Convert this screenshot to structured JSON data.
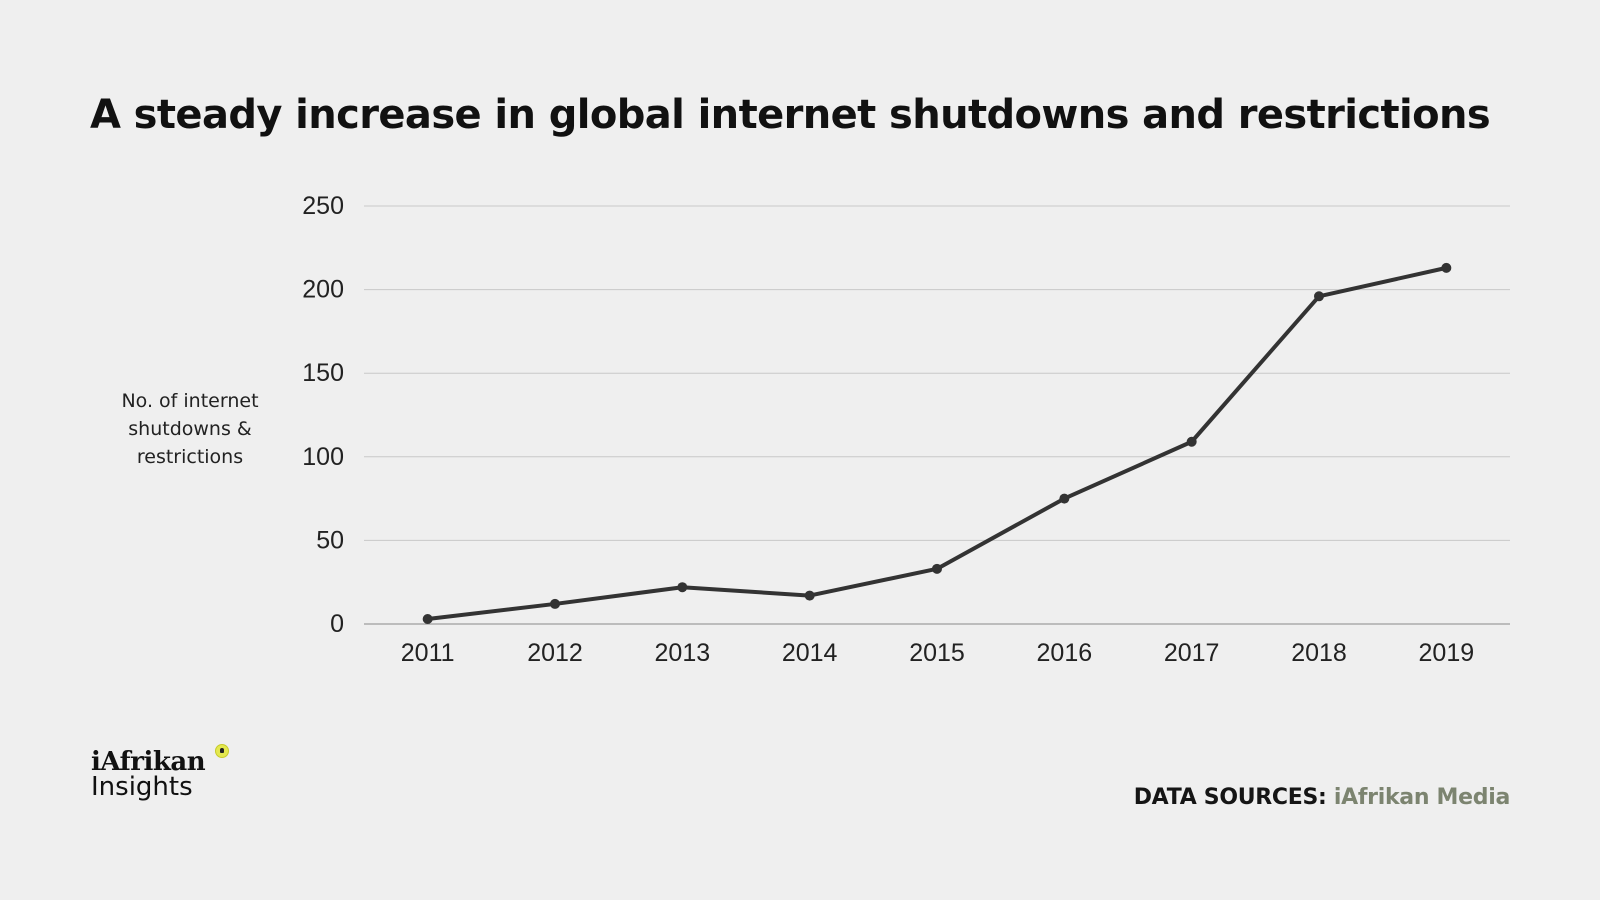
{
  "title": "A steady increase in global internet shutdowns and restrictions",
  "ylabel": [
    "No. of internet",
    "shutdowns &",
    "restrictions"
  ],
  "source": {
    "label": "DATA SOURCES:",
    "value": "iAfrikan Media"
  },
  "logo": {
    "line1": "iAfrikan",
    "line2": "Insights",
    "icon": "africa-globe-icon"
  },
  "colors": {
    "background": "#efefef",
    "line": "#333333",
    "grid": "#c8c8c8",
    "source_value": "#7c8470",
    "logo_dot": "#e4e850"
  },
  "chart_data": {
    "type": "line",
    "x": [
      "2011",
      "2012",
      "2013",
      "2014",
      "2015",
      "2016",
      "2017",
      "2018",
      "2019"
    ],
    "series": [
      {
        "values": [
          3,
          12,
          22,
          17,
          33,
          75,
          109,
          196,
          213
        ]
      }
    ],
    "ylim": [
      0,
      250
    ],
    "yticks": [
      0,
      50,
      100,
      150,
      200,
      250
    ],
    "grid": true
  }
}
